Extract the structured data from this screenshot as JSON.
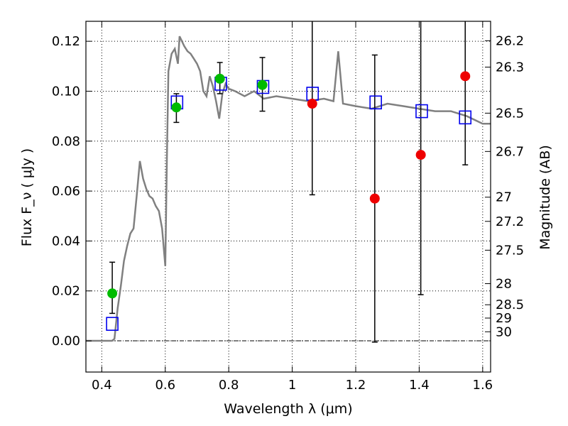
{
  "chart_data": {
    "type": "scatter",
    "xlabel": "Wavelength  λ (μm)",
    "ylabel": "Flux  F_ν  ( μJy )",
    "y2label": "Magnitude (AB)",
    "xlim": [
      0.35,
      1.625
    ],
    "ylim": [
      -0.0125,
      0.128
    ],
    "x_ticks": [
      0.4,
      0.6,
      0.8,
      1.0,
      1.2,
      1.4,
      1.6
    ],
    "x_tick_labels": [
      "0.4",
      "0.6",
      "0.8",
      "1",
      "1.2",
      "1.4",
      "1.6"
    ],
    "y_ticks": [
      0.0,
      0.02,
      0.04,
      0.06,
      0.08,
      0.1,
      0.12
    ],
    "y_tick_labels": [
      "0.00",
      "0.02",
      "0.04",
      "0.06",
      "0.08",
      "0.10",
      "0.12"
    ],
    "mag_ticks": [
      "26.2",
      "26.3",
      "26.5",
      "26.7",
      "27",
      "27.2",
      "27.5",
      "28",
      "28.5",
      "29",
      "30"
    ],
    "mag_zero_point": 23.9,
    "grid": true,
    "colors": {
      "model": "#808080",
      "photometry": "#00bb00",
      "upper": "#ee0000",
      "model_flux": "#0000ee",
      "errorbar": "#000000"
    },
    "model_spectrum": {
      "x": [
        0.35,
        0.42,
        0.432,
        0.44,
        0.45,
        0.46,
        0.47,
        0.48,
        0.49,
        0.5,
        0.51,
        0.52,
        0.53,
        0.54,
        0.55,
        0.56,
        0.57,
        0.58,
        0.59,
        0.6,
        0.605,
        0.61,
        0.62,
        0.63,
        0.64,
        0.645,
        0.66,
        0.67,
        0.68,
        0.69,
        0.7,
        0.71,
        0.72,
        0.73,
        0.74,
        0.75,
        0.76,
        0.77,
        0.78,
        0.79,
        0.8,
        0.82,
        0.85,
        0.88,
        0.91,
        0.95,
        1.0,
        1.05,
        1.1,
        1.13,
        1.145,
        1.16,
        1.2,
        1.25,
        1.3,
        1.35,
        1.4,
        1.45,
        1.5,
        1.55,
        1.6,
        1.625
      ],
      "y": [
        0.0,
        0.0,
        0.0,
        0.0008,
        0.013,
        0.022,
        0.032,
        0.038,
        0.043,
        0.045,
        0.058,
        0.072,
        0.065,
        0.061,
        0.058,
        0.057,
        0.054,
        0.052,
        0.045,
        0.03,
        0.072,
        0.108,
        0.115,
        0.117,
        0.111,
        0.122,
        0.118,
        0.116,
        0.115,
        0.113,
        0.111,
        0.108,
        0.1,
        0.098,
        0.106,
        0.102,
        0.096,
        0.089,
        0.099,
        0.103,
        0.101,
        0.1,
        0.098,
        0.1,
        0.097,
        0.098,
        0.097,
        0.096,
        0.097,
        0.096,
        0.116,
        0.095,
        0.094,
        0.093,
        0.095,
        0.094,
        0.093,
        0.092,
        0.092,
        0.09,
        0.087,
        0.087
      ]
    },
    "observed": [
      {
        "x": 0.433,
        "y": 0.019,
        "yerr_low": 0.011,
        "yerr_high": 0.0315
      },
      {
        "x": 0.635,
        "y": 0.0935,
        "yerr_low": 0.0875,
        "yerr_high": 0.099
      },
      {
        "x": 0.772,
        "y": 0.105,
        "yerr_low": 0.099,
        "yerr_high": 0.1115
      },
      {
        "x": 0.906,
        "y": 0.1025,
        "yerr_low": 0.092,
        "yerr_high": 0.1135
      }
    ],
    "low_sn": [
      {
        "x": 1.063,
        "y": 0.095,
        "yerr_low": 0.0585,
        "yerr_high": 0.128
      },
      {
        "x": 1.26,
        "y": 0.057,
        "yerr_low": -0.0005,
        "yerr_high": 0.1145
      },
      {
        "x": 1.405,
        "y": 0.0745,
        "yerr_low": 0.0185,
        "yerr_high": 0.128
      },
      {
        "x": 1.545,
        "y": 0.106,
        "yerr_low": 0.0705,
        "yerr_high": 0.128
      }
    ],
    "model_fluxes": [
      {
        "x": 0.433,
        "y": 0.0068
      },
      {
        "x": 0.637,
        "y": 0.0955
      },
      {
        "x": 0.775,
        "y": 0.103
      },
      {
        "x": 0.908,
        "y": 0.1017
      },
      {
        "x": 1.064,
        "y": 0.099
      },
      {
        "x": 1.263,
        "y": 0.0955
      },
      {
        "x": 1.408,
        "y": 0.092
      },
      {
        "x": 1.545,
        "y": 0.0895
      }
    ]
  }
}
